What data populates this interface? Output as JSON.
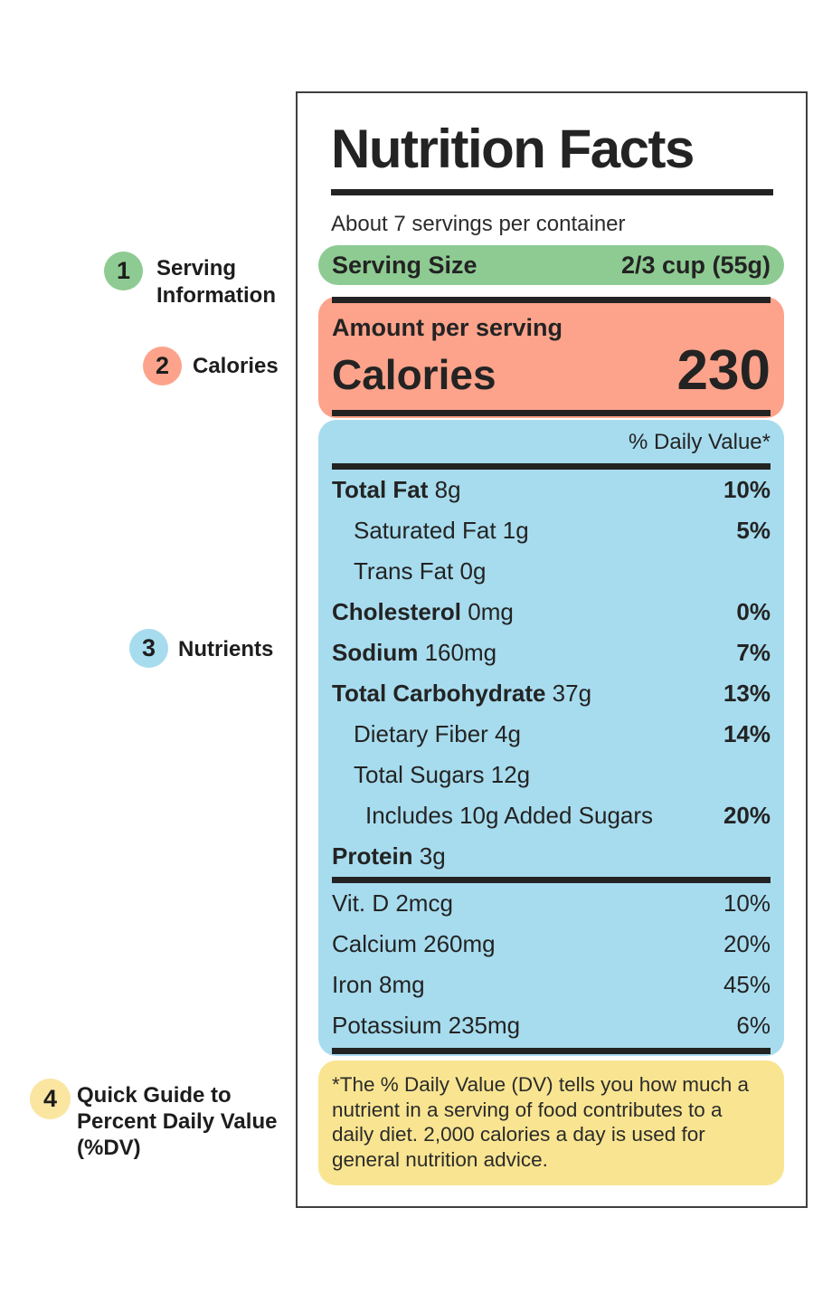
{
  "colors": {
    "green": "#8ecb92",
    "salmon": "#fda38b",
    "blue": "#a7dcee",
    "yellow": "#f9e591",
    "yellow_light": "#fae6a1",
    "text": "#232323",
    "box_border": "#3f3f3f"
  },
  "annotations": [
    {
      "num": "1",
      "label": "Serving\nInformation",
      "color": "#8ecb92"
    },
    {
      "num": "2",
      "label": "Calories",
      "color": "#fda38b"
    },
    {
      "num": "3",
      "label": "Nutrients",
      "color": "#a7dcee"
    },
    {
      "num": "4",
      "label": "Quick Guide to\nPercent Daily Value\n(%DV)",
      "color": "#fae6a1"
    }
  ],
  "label": {
    "title": "Nutrition Facts",
    "servings_per_container": "About 7 servings per container",
    "serving_size": {
      "name": "Serving Size",
      "value": "2/3 cup (55g)"
    },
    "calories": {
      "header": "Amount per serving",
      "name": "Calories",
      "value": "230"
    },
    "daily_value_header": "% Daily Value*",
    "nutrients": [
      {
        "b": "Total Fat",
        "r": " 8g",
        "p": "10%"
      },
      {
        "b": "",
        "r": "Saturated Fat 1g",
        "p": "5%"
      },
      {
        "b": "",
        "r": "Trans Fat 0g",
        "p": ""
      },
      {
        "b": "Cholesterol",
        "r": " 0mg",
        "p": "0%"
      },
      {
        "b": "Sodium",
        "r": " 160mg",
        "p": "7%"
      },
      {
        "b": "Total Carbohydrate",
        "r": " 37g",
        "p": "13%"
      },
      {
        "b": "",
        "r": "Dietary Fiber 4g",
        "p": "14%"
      },
      {
        "b": "",
        "r": "Total Sugars 12g",
        "p": ""
      },
      {
        "b": "",
        "r": "Includes 10g Added Sugars",
        "p": "20%"
      },
      {
        "b": "Protein",
        "r": " 3g",
        "p": ""
      }
    ],
    "vitamins": [
      {
        "r": "Vit. D 2mcg",
        "p": "10%"
      },
      {
        "r": "Calcium 260mg",
        "p": "20%"
      },
      {
        "r": "Iron 8mg",
        "p": "45%"
      },
      {
        "r": "Potassium 235mg",
        "p": "6%"
      }
    ],
    "footnote": "*The % Daily Value (DV) tells you how much a nutrient in a serving of food contributes to a daily diet. 2,000 calories a day is used for general nutrition advice."
  }
}
